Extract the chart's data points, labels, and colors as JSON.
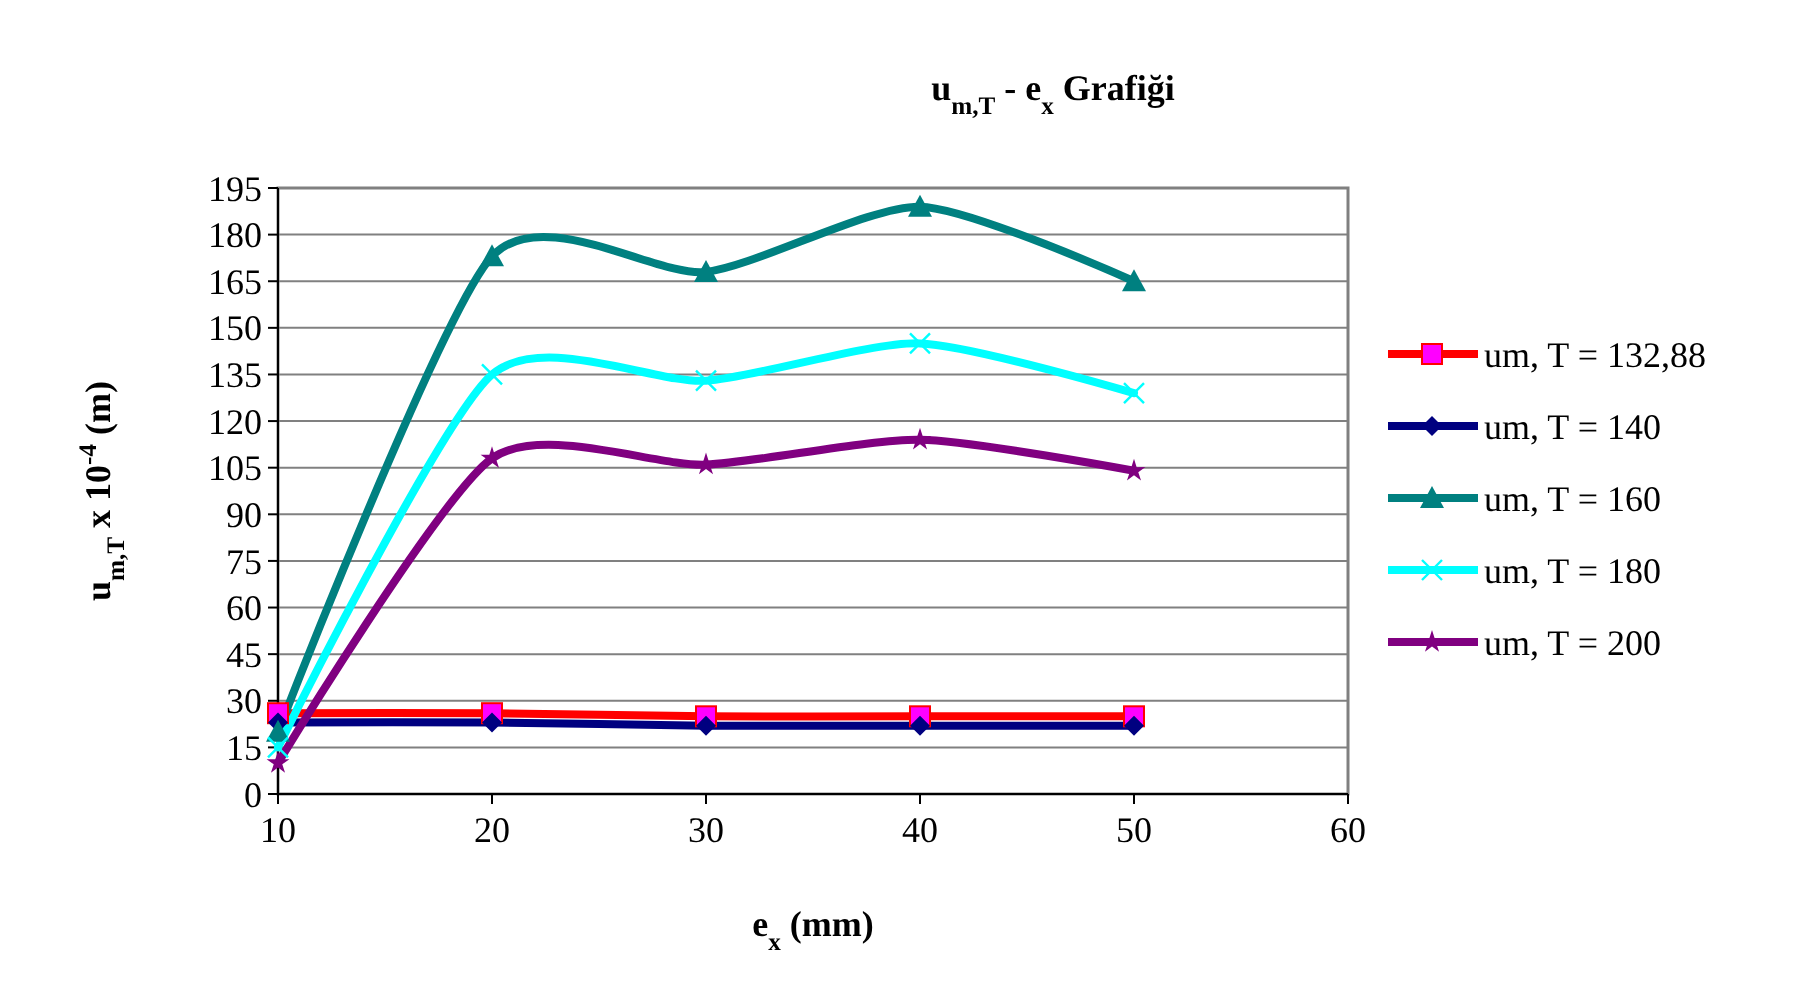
{
  "chart_data": {
    "type": "line",
    "title": "u$_{m,T}$ - e$_{x}$ Grafiği",
    "xlabel": "e$_{x}$ (mm)",
    "ylabel": "u$_{m,T}$ x 10$^{-4}$ (m)",
    "x": [
      10,
      20,
      30,
      40,
      50
    ],
    "series": [
      {
        "name": "um, T = 132,88",
        "color": "#ff0000",
        "marker": "square",
        "values": [
          26,
          26,
          25,
          25,
          25
        ]
      },
      {
        "name": "um, T = 140",
        "color": "#000080",
        "marker": "diamond",
        "values": [
          23,
          23,
          22,
          22,
          22
        ]
      },
      {
        "name": "um, T = 160",
        "color": "#008080",
        "marker": "triangle",
        "values": [
          20,
          173,
          168,
          189,
          165
        ]
      },
      {
        "name": "um, T = 180",
        "color": "#00ffff",
        "marker": "cross",
        "values": [
          15,
          135,
          133,
          145,
          129
        ]
      },
      {
        "name": "um, T = 200",
        "color": "#800080",
        "marker": "star",
        "values": [
          10,
          108,
          106,
          114,
          104
        ]
      }
    ],
    "xlim": [
      10,
      60
    ],
    "xticks": [
      10,
      20,
      30,
      40,
      50,
      60
    ],
    "ylim": [
      0,
      195
    ],
    "yticks": [
      0,
      15,
      30,
      45,
      60,
      75,
      90,
      105,
      120,
      135,
      150,
      165,
      180,
      195
    ],
    "grid": "y",
    "legend": "right"
  }
}
